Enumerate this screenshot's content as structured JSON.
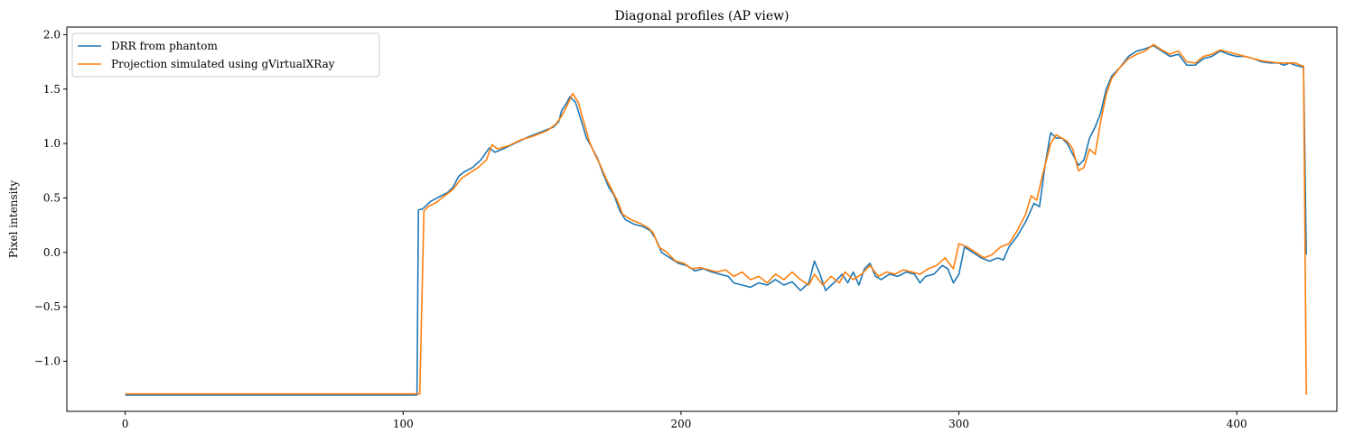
{
  "chart_data": {
    "type": "line",
    "title": "Diagonal profiles (AP view)",
    "xlabel": "",
    "ylabel": "Pixel intensity",
    "xlim": [
      -21,
      436
    ],
    "ylim": [
      -1.46,
      2.07
    ],
    "xticks": [
      0,
      100,
      200,
      300,
      400
    ],
    "yticks": [
      -1.0,
      -0.5,
      0.0,
      0.5,
      1.0,
      1.5,
      2.0
    ],
    "ytick_labels": [
      "−1.0",
      "−0.5",
      "0.0",
      "0.5",
      "1.0",
      "1.5",
      "2.0"
    ],
    "grid": false,
    "legend_position": "upper-left",
    "series": [
      {
        "name": "DRR from phantom",
        "color": "#1f77b4",
        "points": [
          [
            0,
            -1.31
          ],
          [
            20,
            -1.31
          ],
          [
            40,
            -1.31
          ],
          [
            60,
            -1.31
          ],
          [
            80,
            -1.31
          ],
          [
            100,
            -1.31
          ],
          [
            105,
            -1.31
          ],
          [
            105.5,
            0.39
          ],
          [
            107,
            0.4
          ],
          [
            110,
            0.47
          ],
          [
            113,
            0.51
          ],
          [
            116,
            0.55
          ],
          [
            118,
            0.6
          ],
          [
            120,
            0.7
          ],
          [
            122,
            0.74
          ],
          [
            125,
            0.78
          ],
          [
            128,
            0.85
          ],
          [
            131,
            0.96
          ],
          [
            133,
            0.92
          ],
          [
            136,
            0.95
          ],
          [
            140,
            1.0
          ],
          [
            145,
            1.06
          ],
          [
            150,
            1.11
          ],
          [
            154,
            1.15
          ],
          [
            156,
            1.2
          ],
          [
            157,
            1.3
          ],
          [
            159,
            1.38
          ],
          [
            160,
            1.43
          ],
          [
            162,
            1.38
          ],
          [
            164,
            1.22
          ],
          [
            166,
            1.05
          ],
          [
            168,
            0.96
          ],
          [
            170,
            0.86
          ],
          [
            172,
            0.72
          ],
          [
            174,
            0.6
          ],
          [
            176,
            0.52
          ],
          [
            178,
            0.38
          ],
          [
            180,
            0.3
          ],
          [
            183,
            0.26
          ],
          [
            186,
            0.24
          ],
          [
            189,
            0.2
          ],
          [
            191,
            0.12
          ],
          [
            193,
            0.0
          ],
          [
            196,
            -0.05
          ],
          [
            199,
            -0.1
          ],
          [
            202,
            -0.12
          ],
          [
            205,
            -0.17
          ],
          [
            208,
            -0.15
          ],
          [
            211,
            -0.18
          ],
          [
            214,
            -0.2
          ],
          [
            217,
            -0.22
          ],
          [
            219,
            -0.28
          ],
          [
            222,
            -0.3
          ],
          [
            225,
            -0.32
          ],
          [
            228,
            -0.28
          ],
          [
            231,
            -0.3
          ],
          [
            234,
            -0.25
          ],
          [
            237,
            -0.3
          ],
          [
            240,
            -0.27
          ],
          [
            243,
            -0.35
          ],
          [
            246,
            -0.28
          ],
          [
            248,
            -0.08
          ],
          [
            250,
            -0.2
          ],
          [
            252,
            -0.35
          ],
          [
            255,
            -0.28
          ],
          [
            258,
            -0.2
          ],
          [
            260,
            -0.28
          ],
          [
            262,
            -0.18
          ],
          [
            264,
            -0.3
          ],
          [
            266,
            -0.15
          ],
          [
            268,
            -0.1
          ],
          [
            270,
            -0.22
          ],
          [
            272,
            -0.25
          ],
          [
            275,
            -0.2
          ],
          [
            278,
            -0.22
          ],
          [
            281,
            -0.18
          ],
          [
            284,
            -0.2
          ],
          [
            286,
            -0.28
          ],
          [
            288,
            -0.22
          ],
          [
            291,
            -0.2
          ],
          [
            294,
            -0.12
          ],
          [
            296,
            -0.15
          ],
          [
            298,
            -0.28
          ],
          [
            300,
            -0.2
          ],
          [
            302,
            0.05
          ],
          [
            305,
            0.0
          ],
          [
            308,
            -0.05
          ],
          [
            311,
            -0.08
          ],
          [
            314,
            -0.05
          ],
          [
            316,
            -0.07
          ],
          [
            318,
            0.05
          ],
          [
            321,
            0.15
          ],
          [
            324,
            0.28
          ],
          [
            327,
            0.45
          ],
          [
            329,
            0.42
          ],
          [
            331,
            0.8
          ],
          [
            333,
            1.1
          ],
          [
            335,
            1.05
          ],
          [
            337,
            1.05
          ],
          [
            339,
            1.0
          ],
          [
            341,
            0.9
          ],
          [
            343,
            0.8
          ],
          [
            345,
            0.85
          ],
          [
            347,
            1.05
          ],
          [
            349,
            1.15
          ],
          [
            351,
            1.28
          ],
          [
            353,
            1.5
          ],
          [
            355,
            1.62
          ],
          [
            358,
            1.7
          ],
          [
            361,
            1.8
          ],
          [
            364,
            1.85
          ],
          [
            367,
            1.87
          ],
          [
            370,
            1.9
          ],
          [
            373,
            1.85
          ],
          [
            376,
            1.8
          ],
          [
            379,
            1.82
          ],
          [
            382,
            1.72
          ],
          [
            385,
            1.72
          ],
          [
            388,
            1.78
          ],
          [
            391,
            1.8
          ],
          [
            394,
            1.85
          ],
          [
            397,
            1.82
          ],
          [
            400,
            1.8
          ],
          [
            403,
            1.8
          ],
          [
            406,
            1.78
          ],
          [
            409,
            1.75
          ],
          [
            412,
            1.74
          ],
          [
            415,
            1.74
          ],
          [
            417,
            1.72
          ],
          [
            419,
            1.74
          ],
          [
            421,
            1.72
          ],
          [
            424,
            1.7
          ],
          [
            425,
            -0.02
          ]
        ]
      },
      {
        "name": "Projection simulated using gVirtualXRay",
        "color": "#ff7f0e",
        "points": [
          [
            0,
            -1.3
          ],
          [
            20,
            -1.3
          ],
          [
            40,
            -1.3
          ],
          [
            60,
            -1.3
          ],
          [
            80,
            -1.3
          ],
          [
            100,
            -1.3
          ],
          [
            106,
            -1.3
          ],
          [
            107.5,
            0.38
          ],
          [
            109,
            0.42
          ],
          [
            112,
            0.46
          ],
          [
            115,
            0.52
          ],
          [
            118,
            0.58
          ],
          [
            121,
            0.68
          ],
          [
            124,
            0.73
          ],
          [
            127,
            0.78
          ],
          [
            130,
            0.85
          ],
          [
            132,
            0.99
          ],
          [
            134,
            0.95
          ],
          [
            138,
            0.98
          ],
          [
            142,
            1.03
          ],
          [
            147,
            1.07
          ],
          [
            152,
            1.12
          ],
          [
            155,
            1.18
          ],
          [
            157,
            1.25
          ],
          [
            159,
            1.35
          ],
          [
            161,
            1.46
          ],
          [
            163,
            1.38
          ],
          [
            165,
            1.2
          ],
          [
            167,
            1.02
          ],
          [
            169,
            0.9
          ],
          [
            171,
            0.8
          ],
          [
            173,
            0.68
          ],
          [
            175,
            0.58
          ],
          [
            177,
            0.48
          ],
          [
            179,
            0.35
          ],
          [
            182,
            0.3
          ],
          [
            185,
            0.27
          ],
          [
            188,
            0.23
          ],
          [
            190,
            0.18
          ],
          [
            192,
            0.05
          ],
          [
            195,
            0.0
          ],
          [
            198,
            -0.08
          ],
          [
            201,
            -0.1
          ],
          [
            204,
            -0.15
          ],
          [
            207,
            -0.14
          ],
          [
            210,
            -0.16
          ],
          [
            213,
            -0.18
          ],
          [
            216,
            -0.16
          ],
          [
            219,
            -0.22
          ],
          [
            222,
            -0.18
          ],
          [
            225,
            -0.25
          ],
          [
            228,
            -0.22
          ],
          [
            231,
            -0.28
          ],
          [
            234,
            -0.2
          ],
          [
            237,
            -0.25
          ],
          [
            240,
            -0.18
          ],
          [
            243,
            -0.25
          ],
          [
            246,
            -0.3
          ],
          [
            248,
            -0.2
          ],
          [
            251,
            -0.3
          ],
          [
            254,
            -0.22
          ],
          [
            257,
            -0.28
          ],
          [
            259,
            -0.18
          ],
          [
            262,
            -0.25
          ],
          [
            265,
            -0.2
          ],
          [
            268,
            -0.12
          ],
          [
            271,
            -0.22
          ],
          [
            274,
            -0.18
          ],
          [
            277,
            -0.2
          ],
          [
            280,
            -0.16
          ],
          [
            283,
            -0.18
          ],
          [
            286,
            -0.2
          ],
          [
            289,
            -0.15
          ],
          [
            292,
            -0.12
          ],
          [
            295,
            -0.05
          ],
          [
            298,
            -0.15
          ],
          [
            300,
            0.08
          ],
          [
            303,
            0.05
          ],
          [
            306,
            0.0
          ],
          [
            309,
            -0.05
          ],
          [
            312,
            -0.02
          ],
          [
            315,
            0.05
          ],
          [
            318,
            0.08
          ],
          [
            321,
            0.2
          ],
          [
            324,
            0.35
          ],
          [
            326,
            0.52
          ],
          [
            328,
            0.48
          ],
          [
            330,
            0.7
          ],
          [
            333,
            1.0
          ],
          [
            335,
            1.08
          ],
          [
            337,
            1.05
          ],
          [
            339,
            1.02
          ],
          [
            341,
            0.95
          ],
          [
            343,
            0.75
          ],
          [
            345,
            0.78
          ],
          [
            347,
            0.95
          ],
          [
            349,
            0.9
          ],
          [
            351,
            1.2
          ],
          [
            353,
            1.45
          ],
          [
            355,
            1.6
          ],
          [
            358,
            1.7
          ],
          [
            361,
            1.78
          ],
          [
            364,
            1.82
          ],
          [
            367,
            1.85
          ],
          [
            370,
            1.91
          ],
          [
            373,
            1.86
          ],
          [
            376,
            1.82
          ],
          [
            379,
            1.85
          ],
          [
            382,
            1.75
          ],
          [
            385,
            1.74
          ],
          [
            388,
            1.8
          ],
          [
            391,
            1.82
          ],
          [
            394,
            1.86
          ],
          [
            397,
            1.84
          ],
          [
            400,
            1.82
          ],
          [
            403,
            1.8
          ],
          [
            406,
            1.78
          ],
          [
            409,
            1.76
          ],
          [
            412,
            1.75
          ],
          [
            415,
            1.74
          ],
          [
            418,
            1.74
          ],
          [
            421,
            1.74
          ],
          [
            424,
            1.71
          ],
          [
            425,
            -1.31
          ]
        ]
      }
    ]
  }
}
